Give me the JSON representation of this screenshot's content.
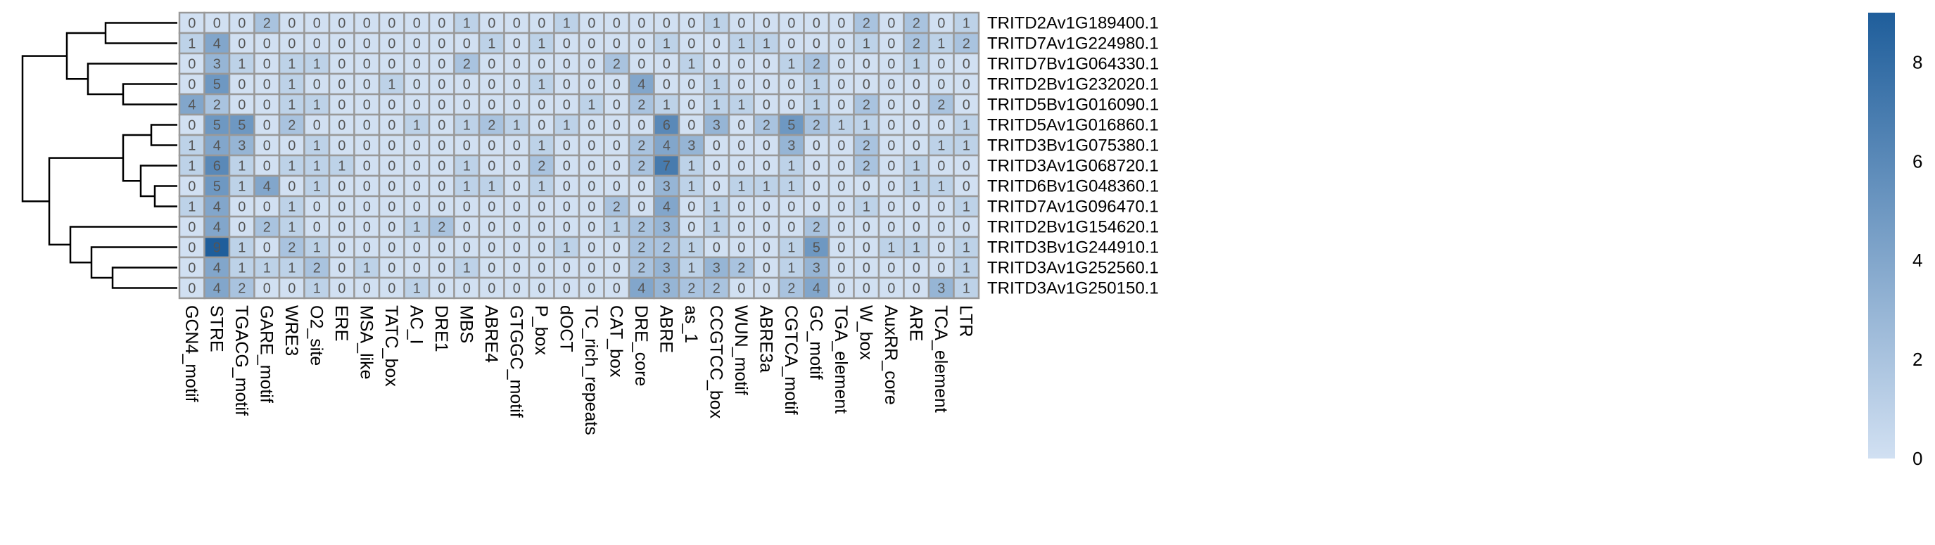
{
  "chart_data": {
    "type": "heatmap",
    "title": "",
    "rows": [
      "TRITD2Av1G189400.1",
      "TRITD7Av1G224980.1",
      "TRITD7Bv1G064330.1",
      "TRITD2Bv1G232020.1",
      "TRITD5Bv1G016090.1",
      "TRITD5Av1G016860.1",
      "TRITD3Bv1G075380.1",
      "TRITD3Av1G068720.1",
      "TRITD6Bv1G048360.1",
      "TRITD7Av1G096470.1",
      "TRITD2Bv1G154620.1",
      "TRITD3Bv1G244910.1",
      "TRITD3Av1G252560.1",
      "TRITD3Av1G250150.1"
    ],
    "columns": [
      "GCN4_motif",
      "STRE",
      "TGACG_motif",
      "GARE_motif",
      "WRE3",
      "O2_site",
      "ERE",
      "MSA_like",
      "TATC_box",
      "AC_I",
      "DRE1",
      "MBS",
      "ABRE4",
      "GTGGC_motif",
      "P_box",
      "dOCT",
      "TC_rich_repeats",
      "CAT_box",
      "DRE_core",
      "ABRE",
      "as_1",
      "CCGTCC_box",
      "WUN_motif",
      "ABRE3a",
      "CGTCA_motif",
      "GC_motif",
      "TGA_element",
      "W_box",
      "AuxRR_core",
      "ARE",
      "TCA_element",
      "LTR"
    ],
    "values": [
      [
        0,
        0,
        0,
        2,
        0,
        0,
        0,
        0,
        0,
        0,
        0,
        1,
        0,
        0,
        0,
        1,
        0,
        0,
        0,
        0,
        0,
        1,
        0,
        0,
        0,
        0,
        0,
        2,
        0,
        2,
        0,
        1
      ],
      [
        1,
        4,
        0,
        0,
        0,
        0,
        0,
        0,
        0,
        0,
        0,
        0,
        1,
        0,
        1,
        0,
        0,
        0,
        0,
        1,
        0,
        0,
        1,
        1,
        0,
        0,
        0,
        1,
        0,
        2,
        1,
        2
      ],
      [
        0,
        3,
        1,
        0,
        1,
        1,
        0,
        0,
        0,
        0,
        0,
        2,
        0,
        0,
        0,
        0,
        0,
        2,
        0,
        0,
        1,
        0,
        0,
        0,
        1,
        2,
        0,
        0,
        0,
        1,
        0,
        0
      ],
      [
        0,
        5,
        0,
        0,
        1,
        0,
        0,
        0,
        1,
        0,
        0,
        0,
        0,
        0,
        1,
        0,
        0,
        0,
        4,
        0,
        0,
        1,
        0,
        0,
        0,
        1,
        0,
        0,
        0,
        0,
        0,
        0
      ],
      [
        4,
        2,
        0,
        0,
        1,
        1,
        0,
        0,
        0,
        0,
        0,
        0,
        0,
        0,
        0,
        0,
        1,
        0,
        2,
        1,
        0,
        1,
        1,
        0,
        0,
        1,
        0,
        2,
        0,
        0,
        2,
        0
      ],
      [
        0,
        5,
        5,
        0,
        2,
        0,
        0,
        0,
        0,
        1,
        0,
        1,
        2,
        1,
        0,
        1,
        0,
        0,
        0,
        6,
        0,
        3,
        0,
        2,
        5,
        2,
        1,
        1,
        0,
        0,
        0,
        1
      ],
      [
        1,
        4,
        3,
        0,
        0,
        1,
        0,
        0,
        0,
        0,
        0,
        0,
        0,
        0,
        1,
        0,
        0,
        0,
        2,
        4,
        3,
        0,
        0,
        0,
        3,
        0,
        0,
        2,
        0,
        0,
        1,
        1
      ],
      [
        1,
        6,
        1,
        0,
        1,
        1,
        1,
        0,
        0,
        0,
        0,
        1,
        0,
        0,
        2,
        0,
        0,
        0,
        2,
        7,
        1,
        0,
        0,
        0,
        1,
        0,
        0,
        2,
        0,
        1,
        0,
        0
      ],
      [
        0,
        5,
        1,
        4,
        0,
        1,
        0,
        0,
        0,
        0,
        0,
        1,
        1,
        0,
        1,
        0,
        0,
        0,
        0,
        3,
        1,
        0,
        1,
        1,
        1,
        0,
        0,
        0,
        0,
        1,
        1,
        0
      ],
      [
        1,
        4,
        0,
        0,
        1,
        0,
        0,
        0,
        0,
        0,
        0,
        0,
        0,
        0,
        0,
        0,
        0,
        2,
        0,
        4,
        0,
        1,
        0,
        0,
        0,
        0,
        0,
        1,
        0,
        0,
        0,
        1
      ],
      [
        0,
        4,
        0,
        2,
        1,
        0,
        0,
        0,
        0,
        1,
        2,
        0,
        0,
        0,
        0,
        0,
        0,
        1,
        2,
        3,
        0,
        1,
        0,
        0,
        0,
        2,
        0,
        0,
        0,
        0,
        0,
        0
      ],
      [
        0,
        9,
        1,
        0,
        2,
        1,
        0,
        0,
        0,
        0,
        0,
        0,
        0,
        0,
        0,
        1,
        0,
        0,
        2,
        2,
        1,
        0,
        0,
        0,
        1,
        5,
        0,
        0,
        1,
        1,
        0,
        1
      ],
      [
        0,
        4,
        1,
        1,
        1,
        2,
        0,
        1,
        0,
        0,
        0,
        1,
        0,
        0,
        0,
        0,
        0,
        0,
        2,
        3,
        1,
        3,
        2,
        0,
        1,
        3,
        0,
        0,
        0,
        0,
        0,
        1
      ],
      [
        0,
        4,
        2,
        0,
        0,
        1,
        0,
        0,
        0,
        1,
        0,
        0,
        0,
        0,
        0,
        0,
        0,
        0,
        4,
        3,
        2,
        2,
        0,
        0,
        2,
        4,
        0,
        0,
        0,
        0,
        3,
        1
      ]
    ],
    "colorbar": {
      "min": 0,
      "max": 9,
      "ticks": [
        "0",
        "2",
        "4",
        "6",
        "8"
      ],
      "low_color": "#d1e0f2",
      "high_color": "#1f5e9b"
    },
    "row_dendrogram": true,
    "cell_labels": true
  }
}
